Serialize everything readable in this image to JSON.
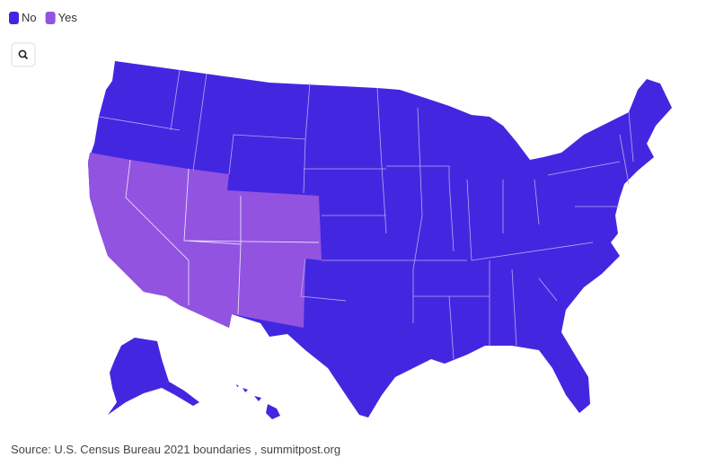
{
  "legend": {
    "items": [
      {
        "name": "No",
        "color": "#4327e0"
      },
      {
        "name": "Yes",
        "color": "#9153e0"
      }
    ]
  },
  "source": "Source: U.S. Census Bureau 2021 boundaries , summitpost.org"
}
